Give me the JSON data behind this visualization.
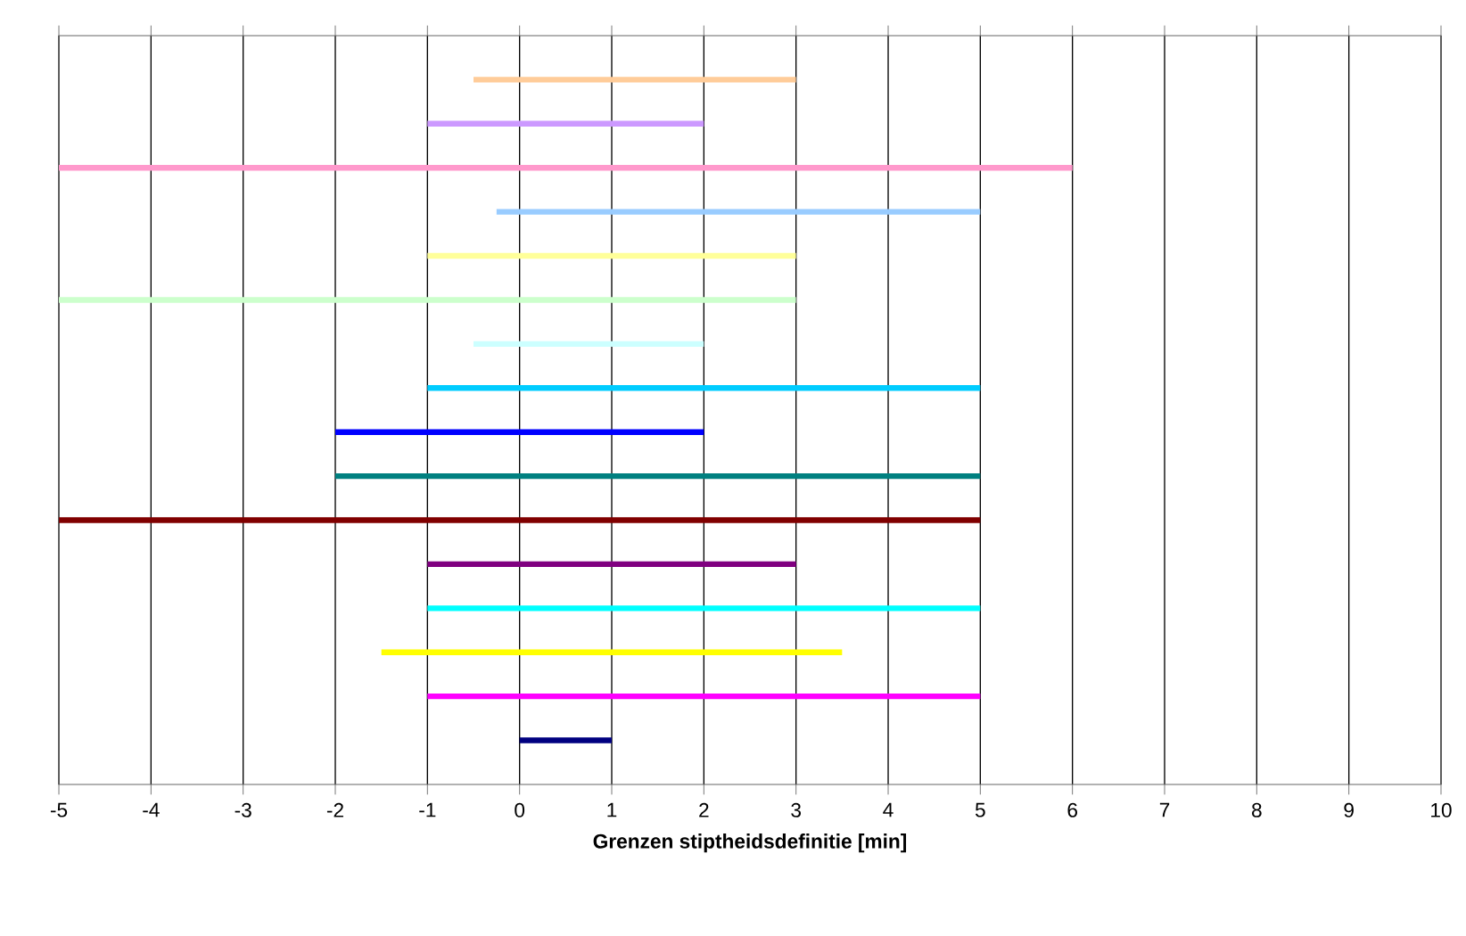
{
  "chart_data": {
    "type": "bar",
    "orientation": "horizontal",
    "xlabel": "Grenzen stiptheidsdefinitie [min]",
    "categories": [
      null,
      null,
      null,
      null,
      null,
      null,
      null,
      null,
      null,
      null,
      null,
      null,
      null,
      null,
      null,
      null
    ],
    "base": [
      -0.5,
      -1,
      -5,
      -0.25,
      -1,
      -5,
      -0.5,
      -1,
      -2,
      -2,
      -5,
      -1,
      -1,
      -1.5,
      -1,
      0
    ],
    "values": [
      3.5,
      3,
      11,
      5.25,
      4,
      8,
      2.5,
      6,
      4,
      7,
      10,
      4,
      6,
      5,
      6,
      1
    ],
    "colors": [
      "#ffcc99",
      "#cc99ff",
      "#ff99cc",
      "#99ccff",
      "#ffff99",
      "#ccffcc",
      "#ccffff",
      "#00ccff",
      "#0000ff",
      "#008080",
      "#800000",
      "#800080",
      "#00ffff",
      "#ffff00",
      "#ff00ff",
      "#000080"
    ],
    "xlim": [
      -5,
      10
    ],
    "xticks": [
      -5,
      -4,
      -3,
      -2,
      -1,
      0,
      1,
      2,
      3,
      4,
      5,
      6,
      7,
      8,
      9,
      10
    ],
    "grid": "x"
  }
}
